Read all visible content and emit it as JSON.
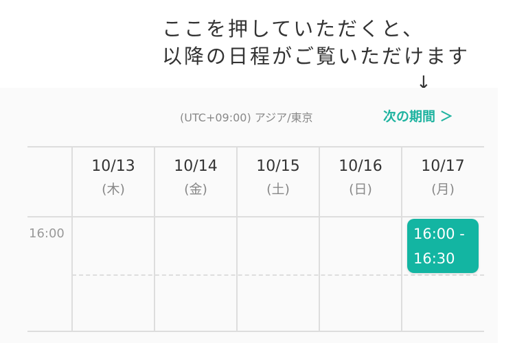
{
  "annotation": {
    "line1": "ここを押していただくと、",
    "line2": "以降の日程がご覧いただけます",
    "arrow": "↓"
  },
  "header": {
    "timezone": "(UTC+09:00) アジア/東京",
    "next_label": "次の期間 ＞"
  },
  "days": [
    {
      "date": "10/13",
      "weekday": "(木)"
    },
    {
      "date": "10/14",
      "weekday": "(金)"
    },
    {
      "date": "10/15",
      "weekday": "(土)"
    },
    {
      "date": "10/16",
      "weekday": "(日)"
    },
    {
      "date": "10/17",
      "weekday": "(月)"
    }
  ],
  "times": [
    "16:00"
  ],
  "event": {
    "start": "16:00 -",
    "end": "16:30"
  },
  "colors": {
    "accent": "#13b5a2"
  }
}
